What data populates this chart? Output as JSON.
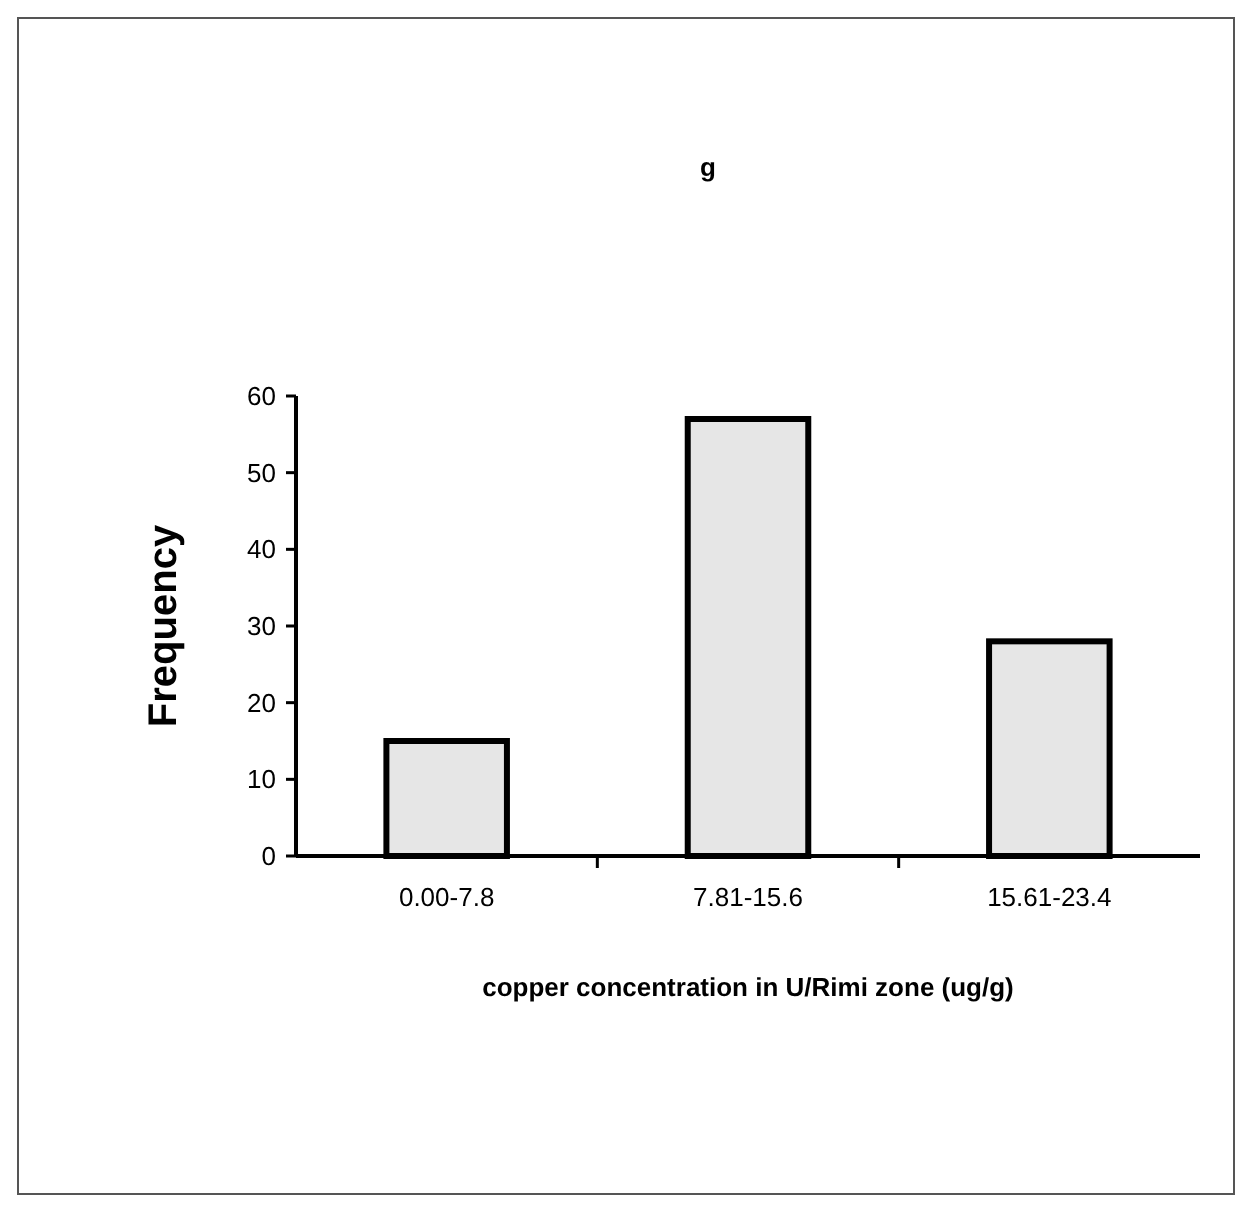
{
  "chart_data": {
    "type": "bar",
    "title": "g",
    "xlabel": "copper concentration in U/Rimi zone (ug/g)",
    "ylabel": "Frequency",
    "categories": [
      "0.00-7.8",
      "7.81-15.6",
      "15.61-23.4"
    ],
    "values": [
      15,
      57,
      28
    ],
    "color": "#e6e6e6",
    "ylim": [
      0,
      60
    ],
    "yticks": [
      0,
      10,
      20,
      30,
      40,
      50,
      60
    ],
    "grid": false
  }
}
